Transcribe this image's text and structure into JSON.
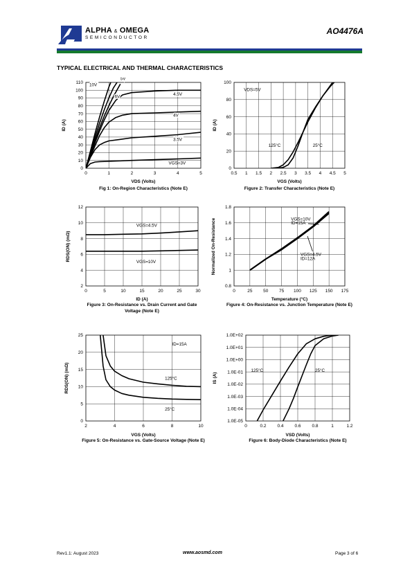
{
  "header": {
    "company_main": "ALPHA",
    "company_amp": "&",
    "company_second": "OMEGA",
    "company_sub": "SEMICONDUCTOR",
    "part_number": "AO4476A",
    "colors": {
      "blue": "#1f3a93",
      "green": "#157a2e"
    }
  },
  "section_title": "TYPICAL ELECTRICAL AND THERMAL CHARACTERISTICS",
  "footer": {
    "revision": "Rev1.1: August 2023",
    "website": "www.aosmd.com",
    "page": "Page 3 of 6"
  },
  "chart_data": [
    {
      "type": "line",
      "caption": "Fig 1: On-Region Characteristics (Note E)",
      "xlabel": "VDS (Volts)",
      "ylabel": "ID (A)",
      "xlim": [
        0,
        5
      ],
      "ylim": [
        0,
        110
      ],
      "xticks": [
        0,
        1,
        2,
        3,
        4,
        5
      ],
      "yticks": [
        0,
        10,
        20,
        30,
        40,
        50,
        60,
        70,
        80,
        90,
        100,
        110
      ],
      "series": [
        {
          "name": "10V",
          "x": [
            0,
            0.2,
            0.4,
            0.6,
            0.8,
            1.0,
            1.15
          ],
          "y": [
            0,
            22,
            45,
            66,
            86,
            104,
            115
          ]
        },
        {
          "name": "6V",
          "x": [
            0,
            0.2,
            0.4,
            0.6,
            0.8,
            1.0,
            1.2,
            1.4
          ],
          "y": [
            0,
            20,
            40,
            58,
            75,
            90,
            103,
            112
          ]
        },
        {
          "name": "5V",
          "x": [
            0,
            0.2,
            0.4,
            0.6,
            0.8,
            1.0,
            1.2,
            1.5
          ],
          "y": [
            0,
            18,
            36,
            52,
            67,
            80,
            92,
            108
          ]
        },
        {
          "name": "4.5V",
          "x": [
            0,
            0.2,
            0.4,
            0.6,
            0.8,
            1.0,
            1.3,
            1.6,
            2.0,
            3.0,
            4.0,
            5.0
          ],
          "y": [
            0,
            17,
            33,
            48,
            62,
            74,
            87,
            94,
            97,
            99,
            100,
            100
          ]
        },
        {
          "name": "4V",
          "x": [
            0,
            0.2,
            0.4,
            0.6,
            0.8,
            1.0,
            1.3,
            1.6,
            2.0,
            3.0,
            4.0,
            5.0
          ],
          "y": [
            0,
            15,
            29,
            42,
            52,
            59,
            65,
            68,
            70,
            71,
            72,
            73
          ]
        },
        {
          "name": "3.5V",
          "x": [
            0,
            0.2,
            0.4,
            0.6,
            0.8,
            1.0,
            1.5,
            2.0,
            3.0,
            4.0,
            5.0
          ],
          "y": [
            0,
            14,
            24,
            30,
            33,
            35,
            37,
            39,
            41,
            43,
            46
          ]
        },
        {
          "name": "VGS=3V",
          "x": [
            0,
            0.2,
            0.4,
            0.6,
            1.0,
            2.0,
            3.0,
            4.0,
            5.0
          ],
          "y": [
            0,
            6,
            8,
            8.5,
            9,
            10,
            11,
            12,
            13
          ]
        }
      ],
      "labels": [
        "10V",
        "6V",
        "5V",
        "4.5V",
        "4V",
        "3.5V",
        "VGS=3V"
      ]
    },
    {
      "type": "line",
      "caption": "Figure 2: Transfer Characteristics (Note E)",
      "xlabel": "VGS (Volts)",
      "ylabel": "ID (A)",
      "xlim": [
        0.5,
        5
      ],
      "ylim": [
        0,
        100
      ],
      "xticks": [
        0.5,
        1,
        1.5,
        2,
        2.5,
        3,
        3.5,
        4,
        4.5,
        5
      ],
      "yticks": [
        0,
        20,
        40,
        60,
        80,
        100
      ],
      "series": [
        {
          "name": "125°C",
          "x": [
            2.0,
            2.3,
            2.5,
            2.7,
            2.9,
            3.1,
            3.3,
            3.5,
            3.8,
            4.1,
            4.4,
            4.6
          ],
          "y": [
            0,
            1,
            4,
            10,
            19,
            30,
            42,
            54,
            70,
            84,
            96,
            104
          ]
        },
        {
          "name": "25°C",
          "x": [
            2.2,
            2.5,
            2.7,
            2.9,
            3.1,
            3.3,
            3.5,
            3.8,
            4.1,
            4.4,
            4.7
          ],
          "y": [
            0,
            1,
            4,
            12,
            26,
            42,
            57,
            71,
            84,
            95,
            104
          ]
        }
      ],
      "annotations": [
        "VDS=5V",
        "125°C",
        "25°C"
      ]
    },
    {
      "type": "line",
      "caption": "Figure 3: On-Resistance vs. Drain Current and Gate Voltage (Note E)",
      "xlabel": "ID (A)",
      "ylabel": "RDS(ON) (mΩ)",
      "xlim": [
        0,
        30
      ],
      "ylim": [
        2,
        12
      ],
      "xticks": [
        0,
        5,
        10,
        15,
        20,
        25,
        30
      ],
      "yticks": [
        2,
        4,
        6,
        8,
        10,
        12
      ],
      "series": [
        {
          "name": "VGS=4.5V",
          "x": [
            0,
            5,
            10,
            15,
            20,
            25,
            30
          ],
          "y": [
            8.5,
            8.5,
            8.55,
            8.6,
            8.7,
            8.85,
            9.0
          ]
        },
        {
          "name": "VGS=10V",
          "x": [
            0,
            5,
            10,
            15,
            20,
            25,
            30
          ],
          "y": [
            6.4,
            6.4,
            6.4,
            6.4,
            6.45,
            6.5,
            6.55
          ]
        }
      ],
      "annotations": [
        "VGS=4.5V",
        "VGS=10V"
      ]
    },
    {
      "type": "line",
      "caption": "Figure 4: On-Resistance vs. Junction Temperature (Note E)",
      "xlabel": "Temperature (°C)",
      "ylabel": "Normalized On-Resistance",
      "xlim": [
        0,
        175
      ],
      "ylim": [
        0.8,
        1.8
      ],
      "xticks": [
        0,
        25,
        50,
        75,
        100,
        125,
        150,
        175
      ],
      "yticks": [
        0.8,
        1,
        1.2,
        1.4,
        1.6,
        1.8
      ],
      "series": [
        {
          "name": "VGS=10V ID=15A",
          "x": [
            25,
            50,
            75,
            100,
            125,
            150
          ],
          "y": [
            1.0,
            1.14,
            1.26,
            1.4,
            1.55,
            1.72
          ]
        },
        {
          "name": "VGS=4.5V ID=12A",
          "x": [
            25,
            50,
            75,
            100,
            125,
            150
          ],
          "y": [
            1.0,
            1.14,
            1.27,
            1.41,
            1.56,
            1.74
          ]
        }
      ],
      "annotations": [
        "VGS=10V",
        "ID=15A",
        "VGS=4.5V",
        "ID=12A"
      ]
    },
    {
      "type": "line",
      "caption": "Figure 5: On-Resistance vs. Gate-Source Voltage (Note E)",
      "xlabel": "VGS (Volts)",
      "ylabel": "RDS(ON) (mΩ)",
      "xlim": [
        2,
        10
      ],
      "ylim": [
        0,
        25
      ],
      "xticks": [
        2,
        4,
        6,
        8,
        10
      ],
      "yticks": [
        0,
        5,
        10,
        15,
        20,
        25
      ],
      "series": [
        {
          "name": "125°C",
          "x": [
            3.2,
            3.4,
            3.7,
            4.0,
            4.5,
            5.0,
            6.0,
            7.0,
            8.0,
            9.0,
            10.0
          ],
          "y": [
            25,
            19,
            16,
            14.5,
            13.2,
            12.3,
            11.3,
            10.8,
            10.4,
            10.1,
            10.0
          ]
        },
        {
          "name": "25°C",
          "x": [
            3.0,
            3.2,
            3.4,
            3.7,
            4.0,
            4.5,
            5.0,
            6.0,
            7.0,
            8.0,
            9.0,
            10.0
          ],
          "y": [
            25,
            16,
            12,
            10,
            9.0,
            8.0,
            7.5,
            6.9,
            6.6,
            6.4,
            6.3,
            6.2
          ]
        }
      ],
      "annotations": [
        "ID=15A",
        "125°C",
        "25°C"
      ]
    },
    {
      "type": "line",
      "caption": "Figure 6: Body-Diode Characteristics (Note E)",
      "xlabel": "VSD (Volts)",
      "ylabel": "IS (A)",
      "xlim": [
        0,
        1.2
      ],
      "ylim": [
        1e-05,
        100
      ],
      "yscale": "log",
      "xticks": [
        0.0,
        0.2,
        0.4,
        0.6,
        0.8,
        1.0,
        1.2
      ],
      "yticks": [
        "1.0E-05",
        "1.0E-04",
        "1.0E-03",
        "1.0E-02",
        "1.0E-01",
        "1.0E+00",
        "1.0E+01",
        "1.0E+02"
      ],
      "series": [
        {
          "name": "125°C",
          "x": [
            0.13,
            0.2,
            0.3,
            0.4,
            0.5,
            0.6,
            0.7,
            0.8,
            0.9,
            1.0
          ],
          "y": [
            1e-05,
            8e-05,
            0.0012,
            0.018,
            0.25,
            3,
            20,
            50,
            80,
            100
          ]
        },
        {
          "name": "25°C",
          "x": [
            0.43,
            0.5,
            0.55,
            0.6,
            0.65,
            0.7,
            0.75,
            0.8,
            0.9,
            1.0,
            1.07
          ],
          "y": [
            1e-05,
            0.0001,
            0.0007,
            0.006,
            0.05,
            0.4,
            3,
            14,
            50,
            85,
            100
          ]
        }
      ],
      "annotations": [
        "125°C",
        "25°C"
      ]
    }
  ]
}
